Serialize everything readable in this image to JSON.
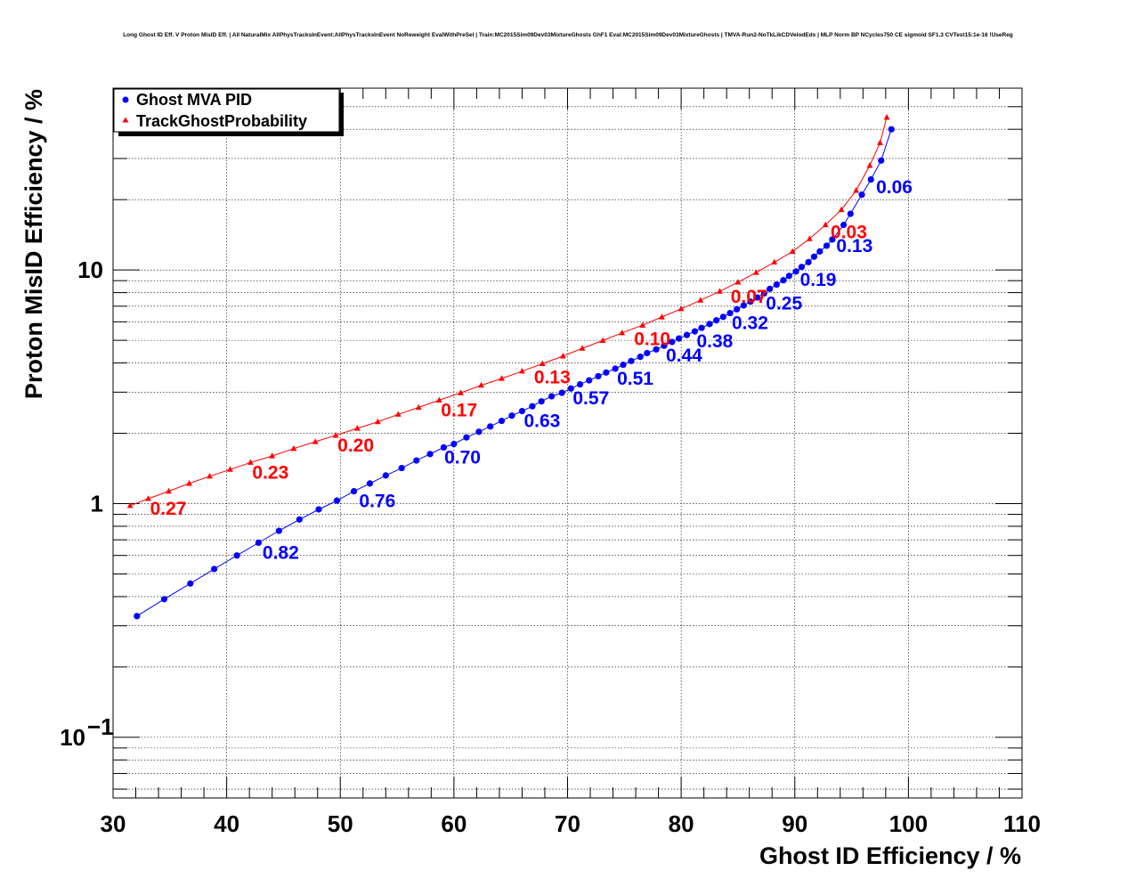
{
  "title": "Long Ghost ID Eff. V Proton MisID Eff. | All NaturalMix AllPhysTracksInEvent:AllPhysTracksInEvent NoReweight EvalWithPreSel | Train:MC2015Sim09Dev03MixtureGhosts GhF1 Eval:MC2015Sim09Dev03MixtureGhosts | TMVA-Run2-NoTkLikCDVelodEdx | MLP Norm BP NCycles750 CE sigmoid SF1.3 CVTest15:1e-16 !UseReg",
  "chart_data": {
    "type": "scatter",
    "xlabel": "Ghost ID Efficiency / %",
    "ylabel": "Proton MisID Efficiency / %",
    "xlim": [
      30,
      110
    ],
    "ylim": [
      0.055,
      60
    ],
    "yscale": "log",
    "grid": true,
    "legend_position": "top-left",
    "x_ticks": [
      "30",
      "40",
      "50",
      "60",
      "70",
      "80",
      "90",
      "100",
      "110"
    ],
    "y_ticks": [
      {
        "value": 1,
        "label": "1"
      },
      {
        "value": 10,
        "label": "10"
      },
      {
        "value": 0.1,
        "label": "10",
        "exponent": "−1"
      }
    ],
    "series": [
      {
        "name": "Ghost MVA PID",
        "color": "#0000ff",
        "marker": "circle",
        "points": [
          [
            32.1,
            0.33
          ],
          [
            34.5,
            0.39
          ],
          [
            36.8,
            0.455
          ],
          [
            38.9,
            0.525
          ],
          [
            40.9,
            0.6
          ],
          [
            42.8,
            0.68
          ],
          [
            44.6,
            0.765
          ],
          [
            46.4,
            0.855
          ],
          [
            48.1,
            0.945
          ],
          [
            49.7,
            1.03
          ],
          [
            51.2,
            1.13
          ],
          [
            52.6,
            1.22
          ],
          [
            54.0,
            1.32
          ],
          [
            55.4,
            1.42
          ],
          [
            56.7,
            1.53
          ],
          [
            57.9,
            1.63
          ],
          [
            59.1,
            1.74
          ],
          [
            60.0,
            1.8
          ],
          [
            61.1,
            1.92
          ],
          [
            62.2,
            2.03
          ],
          [
            63.2,
            2.14
          ],
          [
            64.2,
            2.26
          ],
          [
            65.1,
            2.38
          ],
          [
            66.0,
            2.49
          ],
          [
            66.9,
            2.61
          ],
          [
            67.7,
            2.74
          ],
          [
            68.6,
            2.88
          ],
          [
            69.5,
            2.98
          ],
          [
            70.3,
            3.11
          ],
          [
            71.1,
            3.24
          ],
          [
            71.9,
            3.37
          ],
          [
            72.7,
            3.51
          ],
          [
            73.4,
            3.64
          ],
          [
            74.2,
            3.78
          ],
          [
            74.9,
            3.93
          ],
          [
            75.6,
            4.08
          ],
          [
            76.4,
            4.25
          ],
          [
            77.0,
            4.41
          ],
          [
            77.8,
            4.57
          ],
          [
            78.5,
            4.74
          ],
          [
            79.2,
            4.92
          ],
          [
            79.8,
            5.09
          ],
          [
            80.5,
            5.27
          ],
          [
            81.2,
            5.46
          ],
          [
            81.8,
            5.65
          ],
          [
            82.5,
            5.87
          ],
          [
            83.1,
            6.09
          ],
          [
            83.7,
            6.3
          ],
          [
            84.3,
            6.54
          ],
          [
            84.9,
            6.79
          ],
          [
            85.5,
            7.05
          ],
          [
            86.1,
            7.32
          ],
          [
            86.7,
            7.62
          ],
          [
            87.3,
            7.94
          ],
          [
            87.8,
            8.3
          ],
          [
            88.4,
            8.66
          ],
          [
            89.0,
            9.04
          ],
          [
            89.5,
            9.43
          ],
          [
            90.1,
            9.85
          ],
          [
            90.6,
            10.3
          ],
          [
            91.2,
            10.8
          ],
          [
            91.7,
            11.4
          ],
          [
            92.2,
            12.0
          ],
          [
            92.8,
            12.7
          ],
          [
            93.3,
            13.5
          ],
          [
            94.3,
            15.6
          ],
          [
            94.9,
            17.4
          ],
          [
            95.9,
            21.0
          ],
          [
            96.7,
            24.4
          ],
          [
            97.6,
            29.4
          ],
          [
            98.5,
            40.0
          ]
        ],
        "annotations": [
          {
            "label": "0.82",
            "x": 43.0,
            "y": 0.68
          },
          {
            "label": "0.76",
            "x": 51.5,
            "y": 1.13
          },
          {
            "label": "0.70",
            "x": 59.0,
            "y": 1.74
          },
          {
            "label": "0.63",
            "x": 66.0,
            "y": 2.49
          },
          {
            "label": "0.57",
            "x": 70.3,
            "y": 3.11
          },
          {
            "label": "0.51",
            "x": 74.2,
            "y": 3.78
          },
          {
            "label": "0.44",
            "x": 78.5,
            "y": 4.74
          },
          {
            "label": "0.38",
            "x": 81.2,
            "y": 5.46
          },
          {
            "label": "0.32",
            "x": 84.3,
            "y": 6.54
          },
          {
            "label": "0.25",
            "x": 87.3,
            "y": 7.94
          },
          {
            "label": "0.19",
            "x": 90.3,
            "y": 10.0
          },
          {
            "label": "0.13",
            "x": 93.5,
            "y": 14.0
          },
          {
            "label": "0.06",
            "x": 97.0,
            "y": 25.0
          }
        ]
      },
      {
        "name": "TrackGhostProbability",
        "color": "#ff0000",
        "marker": "triangle",
        "points": [
          [
            31.5,
            0.98
          ],
          [
            33.1,
            1.05
          ],
          [
            34.9,
            1.13
          ],
          [
            36.7,
            1.22
          ],
          [
            38.5,
            1.31
          ],
          [
            40.3,
            1.4
          ],
          [
            42.1,
            1.5
          ],
          [
            44.0,
            1.6
          ],
          [
            45.9,
            1.72
          ],
          [
            47.8,
            1.84
          ],
          [
            49.6,
            1.96
          ],
          [
            51.5,
            2.1
          ],
          [
            53.3,
            2.24
          ],
          [
            55.1,
            2.41
          ],
          [
            56.9,
            2.58
          ],
          [
            58.7,
            2.77
          ],
          [
            60.6,
            2.98
          ],
          [
            62.4,
            3.21
          ],
          [
            64.2,
            3.43
          ],
          [
            66.0,
            3.69
          ],
          [
            67.8,
            3.97
          ],
          [
            69.6,
            4.28
          ],
          [
            71.3,
            4.62
          ],
          [
            73.1,
            4.99
          ],
          [
            74.8,
            5.38
          ],
          [
            76.6,
            5.8
          ],
          [
            78.3,
            6.29
          ],
          [
            80.0,
            6.82
          ],
          [
            81.7,
            7.42
          ],
          [
            83.4,
            8.1
          ],
          [
            85.0,
            8.86
          ],
          [
            86.6,
            9.75
          ],
          [
            88.2,
            10.8
          ],
          [
            89.8,
            12.0
          ],
          [
            91.3,
            13.6
          ],
          [
            92.7,
            15.6
          ],
          [
            94.1,
            18.1
          ],
          [
            95.4,
            21.9
          ],
          [
            96.6,
            28.0
          ],
          [
            97.5,
            35.0
          ],
          [
            98.1,
            45.0
          ]
        ],
        "annotations": [
          {
            "label": "0.27",
            "x": 33.1,
            "y": 1.05
          },
          {
            "label": "0.23",
            "x": 42.1,
            "y": 1.5
          },
          {
            "label": "0.20",
            "x": 49.6,
            "y": 1.96
          },
          {
            "label": "0.17",
            "x": 58.7,
            "y": 2.77
          },
          {
            "label": "0.13",
            "x": 66.9,
            "y": 3.83
          },
          {
            "label": "0.10",
            "x": 75.7,
            "y": 5.59
          },
          {
            "label": "0.07",
            "x": 84.2,
            "y": 8.48
          },
          {
            "label": "0.03",
            "x": 93.0,
            "y": 16.0
          }
        ]
      }
    ]
  }
}
